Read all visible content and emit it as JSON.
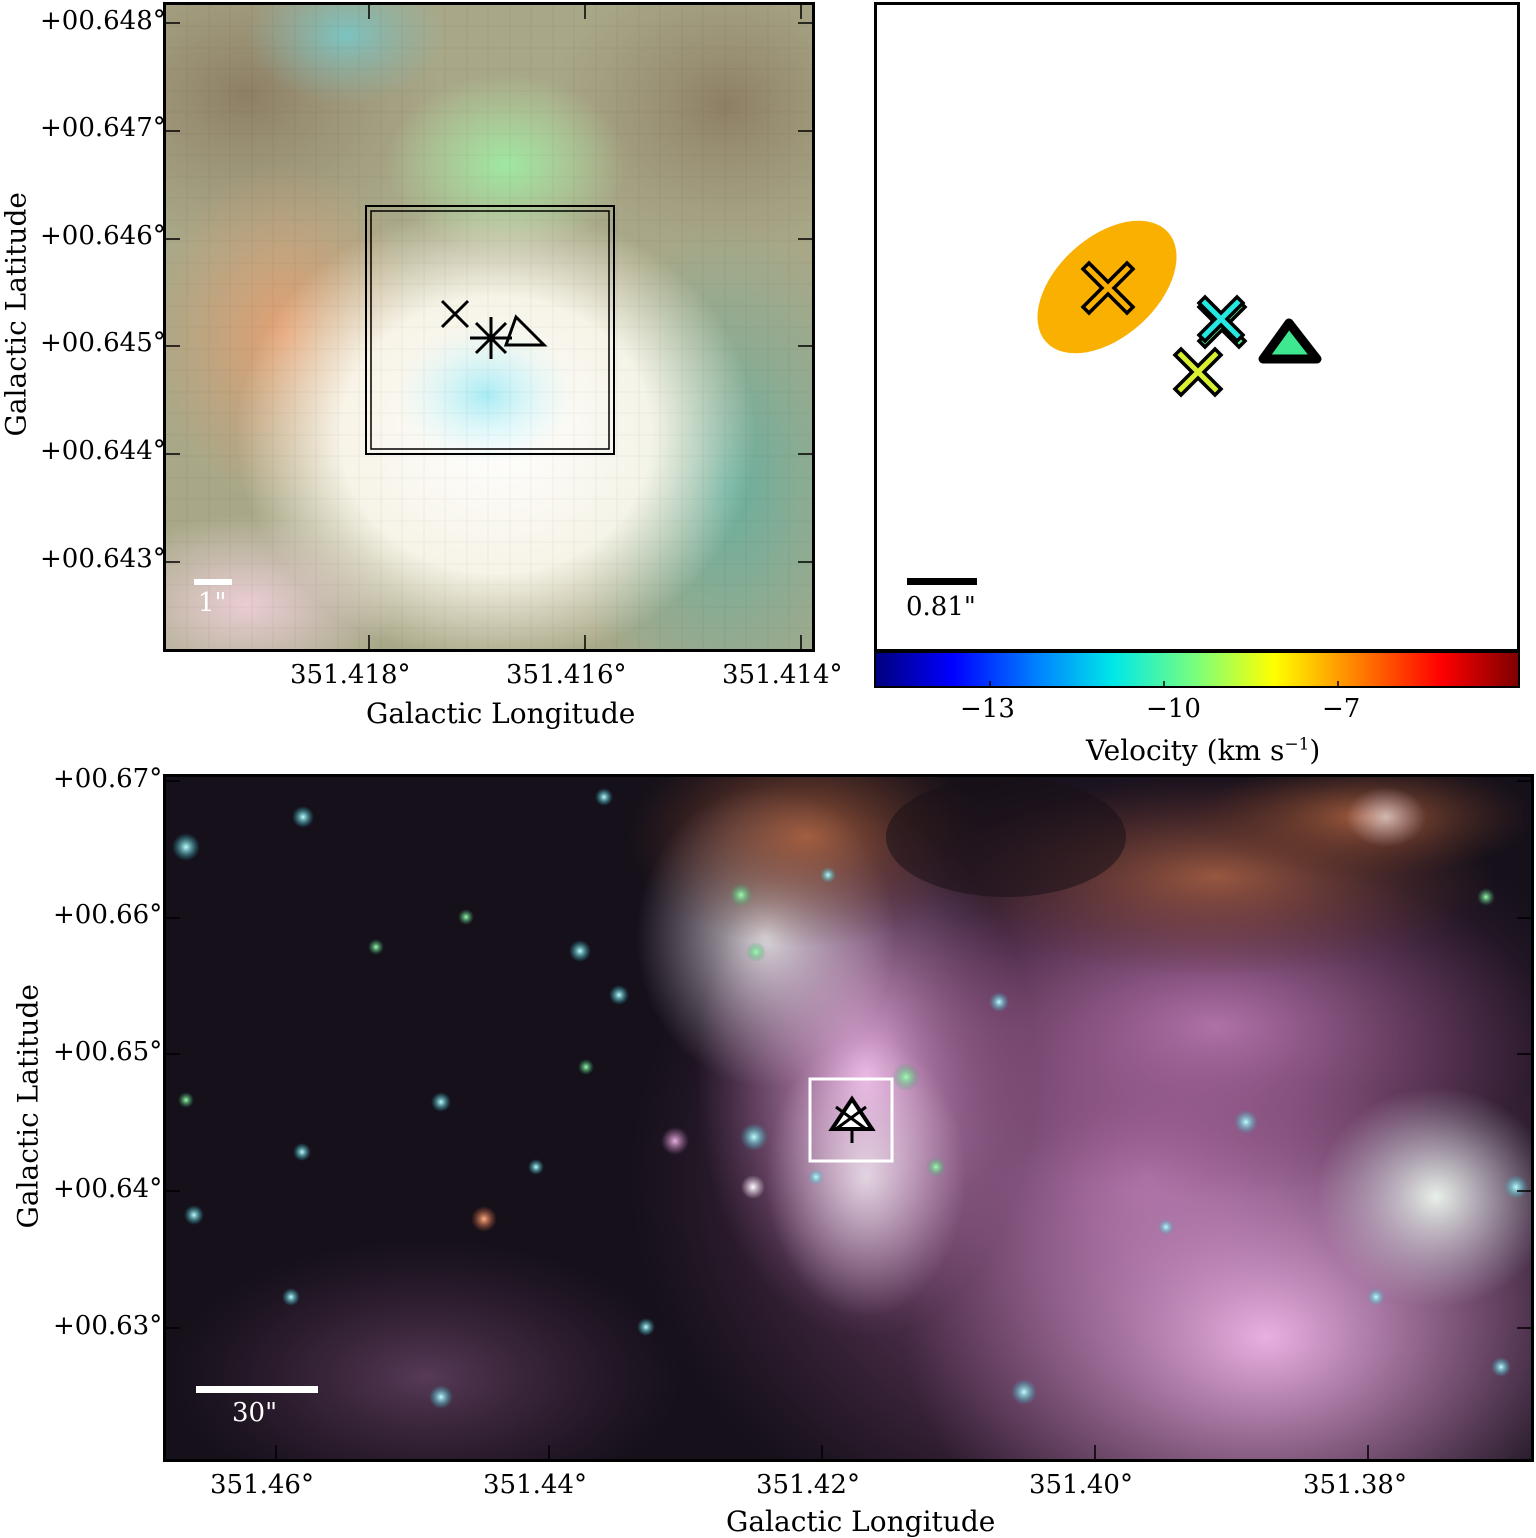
{
  "top_left": {
    "y_ticks": [
      "+00.648°",
      "+00.647°",
      "+00.646°",
      "+00.645°",
      "+00.644°",
      "+00.643°"
    ],
    "x_ticks": [
      "351.418°",
      "351.416°",
      "351.414°"
    ],
    "xlabel": "Galactic Longitude",
    "ylabel": "Galactic Latitude",
    "scalebar": "1\""
  },
  "top_right": {
    "scalebar": "0.81\"",
    "colorbar_ticks": [
      "−13",
      "−10",
      "−7"
    ],
    "colorbar_label": "Velocity (km s",
    "colorbar_label_sup": "−1",
    "colorbar_label_end": ")",
    "colors": {
      "ellipse": "#f9b000",
      "cyan_x": "#24e8e0",
      "yellow_x": "#d8f030",
      "triangle": "#3ee890"
    }
  },
  "bottom": {
    "y_ticks": [
      "+00.67°",
      "+00.66°",
      "+00.65°",
      "+00.64°",
      "+00.63°"
    ],
    "x_ticks": [
      "351.46°",
      "351.44°",
      "351.42°",
      "351.40°",
      "351.38°"
    ],
    "xlabel": "Galactic Longitude",
    "ylabel": "Galactic Latitude",
    "scalebar": "30\""
  }
}
